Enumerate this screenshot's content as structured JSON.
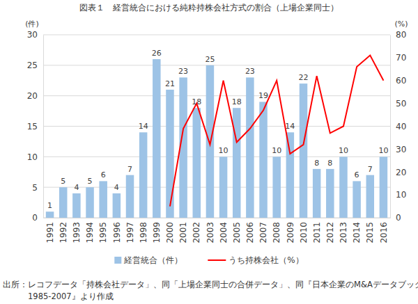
{
  "chart_data": {
    "type": "bar",
    "title": "図表１　経営統合における純粋持株会社方式の割合（上場企業同士）",
    "ylabel": "(件)",
    "y2label": "(%)",
    "source": [
      "出所：レコフデータ「持株会社データ」、同「上場企業同士の合併データ」、同『日本企業のM&Aデータブック",
      "1985-2007』より作成"
    ],
    "categories": [
      "1991",
      "1992",
      "1993",
      "1994",
      "1995",
      "1996",
      "1997",
      "1998",
      "1999",
      "2000",
      "2001",
      "2002",
      "2003",
      "2004",
      "2005",
      "2006",
      "2007",
      "2008",
      "2009",
      "2010",
      "2011",
      "2012",
      "2013",
      "2014",
      "2015",
      "2016"
    ],
    "series": [
      {
        "name": "経営統合（件）",
        "type": "bar",
        "color": "#9dc3e6",
        "data_labels": true,
        "values": [
          1,
          5,
          4,
          5,
          6,
          4,
          7,
          14,
          26,
          21,
          23,
          18,
          25,
          10,
          18,
          23,
          19,
          10,
          14,
          22,
          8,
          8,
          10,
          6,
          7,
          10
        ]
      },
      {
        "name": "うち持株会社（%）",
        "type": "line",
        "color": "#ff0000",
        "axis": "y2",
        "values": [
          null,
          null,
          null,
          null,
          null,
          null,
          null,
          null,
          null,
          5,
          39,
          50,
          32,
          60,
          33,
          39,
          47,
          60,
          28,
          32,
          62,
          37,
          40,
          66,
          71,
          60
        ]
      }
    ],
    "ylim": [
      0,
      30
    ],
    "yticks": [
      0,
      5,
      10,
      15,
      20,
      25,
      30
    ],
    "y2lim": [
      0,
      80
    ],
    "y2ticks": [
      0,
      10,
      20,
      30,
      40,
      50,
      60,
      70,
      80
    ],
    "grid": true,
    "legend": "bottom"
  }
}
